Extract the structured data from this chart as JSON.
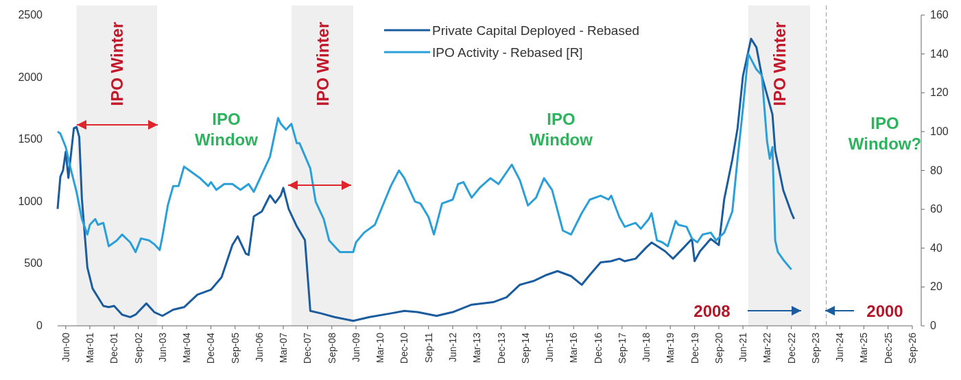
{
  "chart_data": {
    "type": "line",
    "xlim": [
      "2000-03",
      "2026-09"
    ],
    "xticks": [
      {
        "value": "2000-06",
        "label": "Jun-00"
      },
      {
        "value": "2001-03",
        "label": "Mar-01"
      },
      {
        "value": "2001-12",
        "label": "Dec-01"
      },
      {
        "value": "2002-09",
        "label": "Sep-02"
      },
      {
        "value": "2003-06",
        "label": "Jun-03"
      },
      {
        "value": "2004-03",
        "label": "Mar-04"
      },
      {
        "value": "2004-12",
        "label": "Dec-04"
      },
      {
        "value": "2005-09",
        "label": "Sep-05"
      },
      {
        "value": "2006-06",
        "label": "Jun-06"
      },
      {
        "value": "2007-03",
        "label": "Mar-07"
      },
      {
        "value": "2007-12",
        "label": "Dec-07"
      },
      {
        "value": "2008-09",
        "label": "Sep-08"
      },
      {
        "value": "2009-06",
        "label": "Jun-09"
      },
      {
        "value": "2010-03",
        "label": "Mar-10"
      },
      {
        "value": "2010-12",
        "label": "Dec-10"
      },
      {
        "value": "2011-09",
        "label": "Sep-11"
      },
      {
        "value": "2012-06",
        "label": "Jun-12"
      },
      {
        "value": "2013-03",
        "label": "Mar-13"
      },
      {
        "value": "2013-12",
        "label": "Dec-13"
      },
      {
        "value": "2014-09",
        "label": "Sep-14"
      },
      {
        "value": "2015-06",
        "label": "Jun-15"
      },
      {
        "value": "2016-03",
        "label": "Mar-16"
      },
      {
        "value": "2016-12",
        "label": "Dec-16"
      },
      {
        "value": "2017-09",
        "label": "Sep-17"
      },
      {
        "value": "2018-06",
        "label": "Jun-18"
      },
      {
        "value": "2019-03",
        "label": "Mar-19"
      },
      {
        "value": "2019-12",
        "label": "Dec-19"
      },
      {
        "value": "2020-09",
        "label": "Sep-20"
      },
      {
        "value": "2021-06",
        "label": "Jun-21"
      },
      {
        "value": "2022-03",
        "label": "Mar-22"
      },
      {
        "value": "2022-12",
        "label": "Dec-22"
      },
      {
        "value": "2023-09",
        "label": "Sep-23"
      },
      {
        "value": "2024-06",
        "label": "Jun-24"
      },
      {
        "value": "2025-03",
        "label": "Mar-25"
      },
      {
        "value": "2025-12",
        "label": "Dec-25"
      },
      {
        "value": "2026-09",
        "label": "Sep-26"
      }
    ],
    "ylim": [
      0,
      2500
    ],
    "yticks": [
      0,
      500,
      1000,
      1500,
      2000,
      2500
    ],
    "y2lim": [
      0,
      160
    ],
    "y2ticks": [
      0,
      20,
      40,
      60,
      80,
      100,
      120,
      140,
      160
    ],
    "grid": false,
    "legend": "top",
    "series": [
      {
        "name": "Private Capital Deployed - Rebased",
        "color": "#1b5c9e",
        "x": [
          "2000-03",
          "2000-04",
          "2000-05",
          "2000-06",
          "2000-07",
          "2000-09",
          "2000-10",
          "2000-11",
          "2000-12",
          "2001-02",
          "2001-04",
          "2001-08",
          "2001-10",
          "2001-12",
          "2002-03",
          "2002-06",
          "2002-08",
          "2002-12",
          "2003-03",
          "2003-06",
          "2003-10",
          "2004-02",
          "2004-07",
          "2004-12",
          "2005-04",
          "2005-08",
          "2005-10",
          "2006-01",
          "2006-02",
          "2006-04",
          "2006-07",
          "2006-10",
          "2006-12",
          "2007-02",
          "2007-03",
          "2007-05",
          "2007-08",
          "2007-11",
          "2008-01",
          "2008-05",
          "2008-10",
          "2009-05",
          "2009-11",
          "2010-07",
          "2010-12",
          "2011-05",
          "2011-12",
          "2012-06",
          "2013-01",
          "2013-09",
          "2014-02",
          "2014-07",
          "2014-12",
          "2015-05",
          "2015-09",
          "2016-02",
          "2016-06",
          "2016-09",
          "2017-01",
          "2017-05",
          "2017-08",
          "2017-10",
          "2018-02",
          "2018-06",
          "2018-08",
          "2019-01",
          "2019-04",
          "2019-08",
          "2019-11",
          "2019-12",
          "2020-02",
          "2020-06",
          "2020-09",
          "2020-11",
          "2021-02",
          "2021-04",
          "2021-06",
          "2021-09",
          "2021-11",
          "2022-01",
          "2022-05",
          "2022-06",
          "2022-09",
          "2022-12",
          "2023-01"
        ],
        "values": [
          940,
          1200,
          1250,
          1400,
          1190,
          1590,
          1600,
          1520,
          1020,
          470,
          300,
          160,
          150,
          160,
          90,
          70,
          90,
          180,
          110,
          80,
          130,
          150,
          250,
          290,
          390,
          650,
          720,
          580,
          570,
          880,
          920,
          1050,
          990,
          1050,
          1110,
          940,
          800,
          690,
          120,
          100,
          70,
          40,
          70,
          100,
          120,
          110,
          80,
          110,
          170,
          190,
          230,
          330,
          360,
          410,
          440,
          400,
          330,
          410,
          510,
          520,
          540,
          520,
          540,
          630,
          670,
          600,
          540,
          630,
          700,
          520,
          600,
          700,
          650,
          1020,
          1340,
          1590,
          2010,
          2310,
          2240,
          2010,
          1700,
          1410,
          1090,
          910,
          860
        ]
      },
      {
        "name": "IPO Activity - Rebased [R]",
        "color": "#2a9fd8",
        "axis": "y2",
        "x": [
          "2000-03",
          "2000-04",
          "2000-06",
          "2000-08",
          "2000-10",
          "2000-12",
          "2001-02",
          "2001-03",
          "2001-05",
          "2001-06",
          "2001-08",
          "2001-10",
          "2002-01",
          "2002-03",
          "2002-06",
          "2002-08",
          "2002-10",
          "2003-01",
          "2003-03",
          "2003-05",
          "2003-06",
          "2003-08",
          "2003-10",
          "2003-12",
          "2004-02",
          "2004-04",
          "2004-05",
          "2004-08",
          "2004-11",
          "2004-12",
          "2005-02",
          "2005-05",
          "2005-08",
          "2005-11",
          "2006-02",
          "2006-04",
          "2006-07",
          "2006-10",
          "2007-01",
          "2007-02",
          "2007-04",
          "2007-06",
          "2007-08",
          "2007-09",
          "2008-01",
          "2008-03",
          "2008-06",
          "2008-08",
          "2008-12",
          "2009-05",
          "2009-06",
          "2009-09",
          "2010-01",
          "2010-04",
          "2010-07",
          "2010-10",
          "2010-12",
          "2011-04",
          "2011-06",
          "2011-09",
          "2011-11",
          "2012-02",
          "2012-06",
          "2012-08",
          "2012-10",
          "2013-01",
          "2013-04",
          "2013-08",
          "2013-11",
          "2014-04",
          "2014-07",
          "2014-10",
          "2015-01",
          "2015-04",
          "2015-07",
          "2015-11",
          "2016-02",
          "2016-06",
          "2016-09",
          "2017-01",
          "2017-04",
          "2017-05",
          "2017-08",
          "2017-10",
          "2018-02",
          "2018-04",
          "2018-07",
          "2018-08",
          "2018-10",
          "2018-12",
          "2019-02",
          "2019-05",
          "2019-06",
          "2019-09",
          "2019-11",
          "2020-01",
          "2020-03",
          "2020-06",
          "2020-08",
          "2020-11",
          "2021-02",
          "2021-04",
          "2021-06",
          "2021-08",
          "2021-11",
          "2022-01",
          "2022-03",
          "2022-04",
          "2022-05",
          "2022-06",
          "2022-07",
          "2022-09",
          "2022-12"
        ],
        "values": [
          100,
          99,
          92,
          80,
          69,
          55,
          47,
          52,
          55,
          52,
          53,
          41,
          44,
          47,
          43,
          38,
          45,
          44,
          42,
          39,
          46,
          62,
          72,
          72,
          82,
          80,
          79,
          76,
          72,
          74,
          70,
          73,
          73,
          70,
          73,
          69,
          78,
          87,
          107,
          104,
          101,
          104,
          94,
          94,
          81,
          64,
          55,
          44,
          38,
          38,
          43,
          48,
          52,
          62,
          72,
          80,
          76,
          64,
          63,
          56,
          47,
          63,
          65,
          73,
          74,
          66,
          71,
          76,
          73,
          83,
          75,
          62,
          66,
          76,
          70,
          49,
          47,
          58,
          65,
          67,
          65,
          67,
          56,
          51,
          53,
          50,
          55,
          58,
          44,
          43,
          41,
          54,
          52,
          51,
          45,
          43,
          47,
          48,
          44,
          48,
          59,
          86,
          112,
          140,
          132,
          129,
          95,
          86,
          92,
          44,
          38,
          34,
          29
        ]
      }
    ],
    "bands": [
      {
        "axis": "x",
        "from": "2000-10",
        "to": "2003-04",
        "label": "IPO Winter",
        "color": "#efefef"
      },
      {
        "axis": "x",
        "from": "2007-06",
        "to": "2009-05",
        "label": "IPO Winter",
        "color": "#efefef"
      },
      {
        "axis": "x",
        "from": "2021-08",
        "to": "2023-07",
        "label": "IPO Winter",
        "color": "#efefef"
      }
    ],
    "ref_lines": [
      {
        "axis": "x",
        "value": "2024-01",
        "color": "#999999",
        "line_style": "dashed"
      }
    ],
    "annotations": [
      "IPO Window",
      "IPO Window",
      "IPO Window?",
      "2008",
      "2000"
    ]
  }
}
